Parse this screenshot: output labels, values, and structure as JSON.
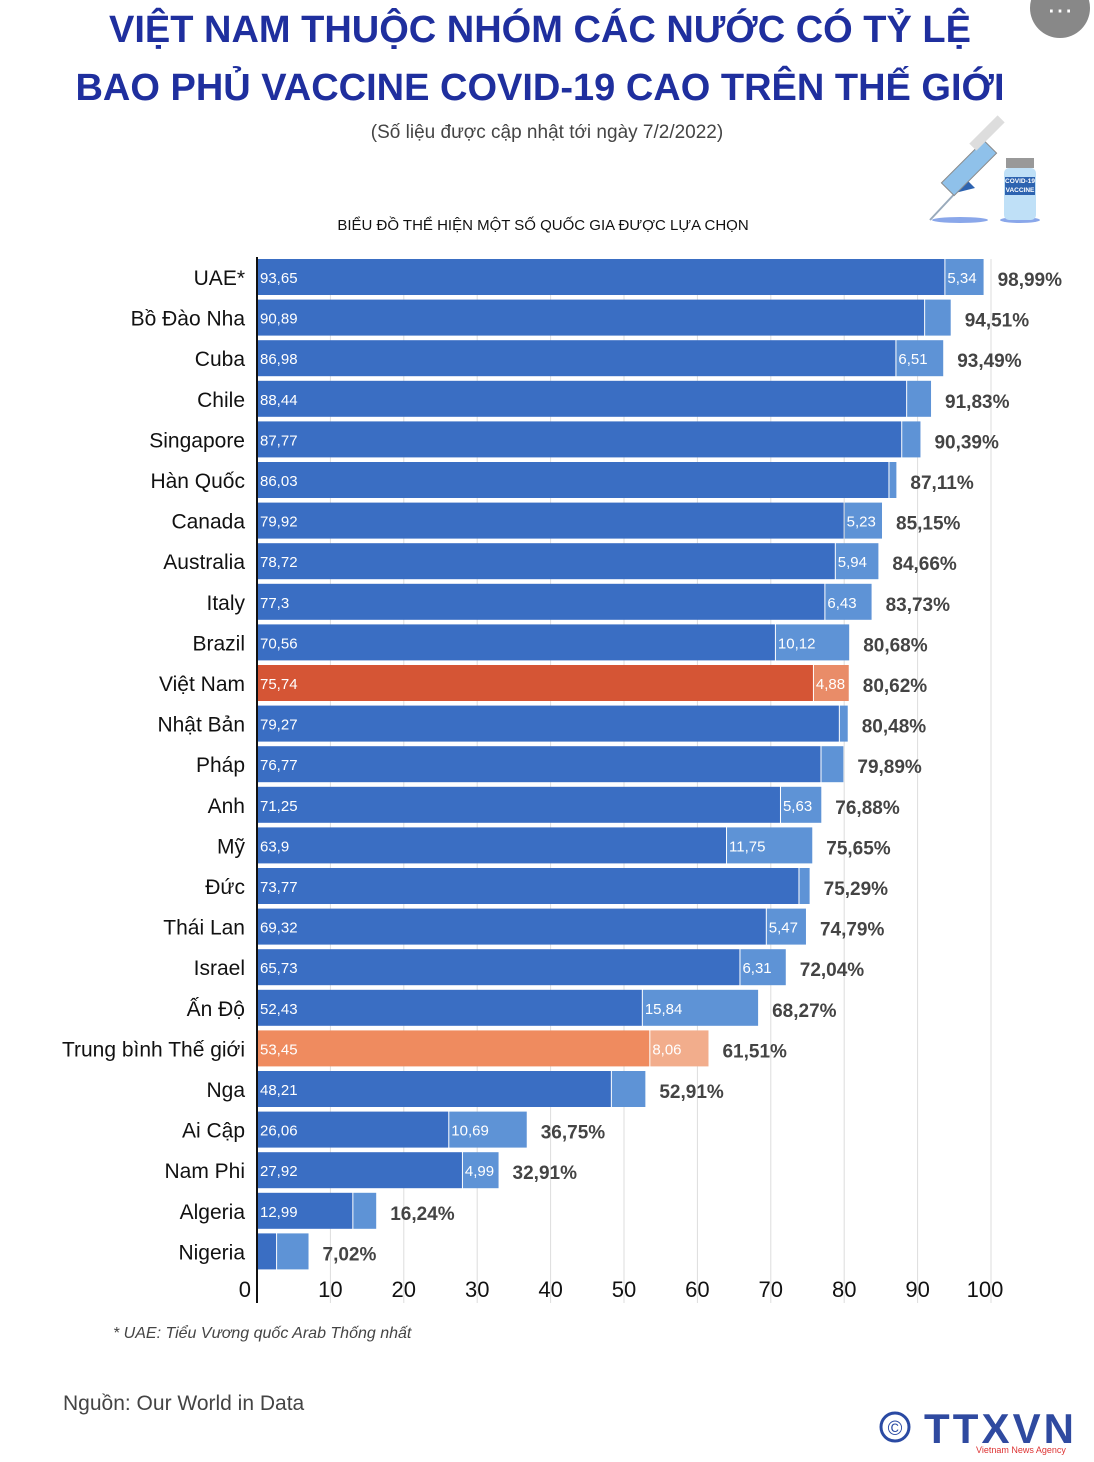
{
  "header": {
    "title_line1": "VIỆT NAM THUỘC NHÓM CÁC NƯỚC CÓ TỶ LỆ",
    "title_line2": "BAO PHỦ VACCINE COVID-19 CAO TRÊN THẾ GIỚI",
    "subtitle": "(Số liệu được cập nhật tới ngày 7/2/2022)",
    "more_icon": "⋯"
  },
  "vial_label": "COVID-19 VACCINE",
  "chart_data": {
    "type": "bar",
    "orientation": "horizontal",
    "stacked": true,
    "title": "BIỂU ĐỒ THỂ HIỆN MỘT SỐ QUỐC GIA ĐƯỢC LỰA CHỌN",
    "xlim": [
      0,
      100
    ],
    "xticks": [
      "0",
      "10",
      "20",
      "30",
      "40",
      "50",
      "60",
      "70",
      "80",
      "90",
      "100"
    ],
    "grid": true,
    "colors": {
      "primary": "#3a6ec3",
      "secondary": "#5e93d6",
      "vn_primary": "#d55535",
      "vn_secondary": "#e98c68",
      "world_primary": "#ef8b5f",
      "world_secondary": "#f2ad8c"
    },
    "categories": [
      "UAE*",
      "Bồ Đào Nha",
      "Cuba",
      "Chile",
      "Singapore",
      "Hàn Quốc",
      "Canada",
      "Australia",
      "Italy",
      "Brazil",
      "Việt Nam",
      "Nhật Bản",
      "Pháp",
      "Anh",
      "Mỹ",
      "Đức",
      "Thái Lan",
      "Israel",
      "Ấn Độ",
      "Trung bình Thế giới",
      "Nga",
      "Ai Cập",
      "Nam Phi",
      "Algeria",
      "Nigeria"
    ],
    "series": [
      {
        "values": [
          93.65,
          90.89,
          86.98,
          88.44,
          87.77,
          86.03,
          79.92,
          78.72,
          77.3,
          70.56,
          75.74,
          79.27,
          76.77,
          71.25,
          63.9,
          73.77,
          69.32,
          65.73,
          52.43,
          53.45,
          48.21,
          26.06,
          27.92,
          12.99,
          2.6
        ],
        "labels": [
          "93,65",
          "90,89",
          "86,98",
          "88,44",
          "87,77",
          "86,03",
          "79,92",
          "78,72",
          "77,3",
          "70,56",
          "75,74",
          "79,27",
          "76,77",
          "71,25",
          "63,9",
          "73,77",
          "69,32",
          "65,73",
          "52,43",
          "53,45",
          "48,21",
          "26,06",
          "27,92",
          "12,99",
          ""
        ]
      },
      {
        "values": [
          5.34,
          3.62,
          6.51,
          3.39,
          2.62,
          1.08,
          5.23,
          5.94,
          6.43,
          10.12,
          4.88,
          1.21,
          3.12,
          5.63,
          11.75,
          1.52,
          5.47,
          6.31,
          15.84,
          8.06,
          4.7,
          10.69,
          4.99,
          3.25,
          4.42
        ],
        "labels": [
          "5,34",
          "",
          "6,51",
          "",
          "",
          "",
          "5,23",
          "5,94",
          "6,43",
          "10,12",
          "4,88",
          "",
          "",
          "5,63",
          "11,75",
          "",
          "5,47",
          "6,31",
          "15,84",
          "8,06",
          "",
          "10,69",
          "4,99",
          "",
          ""
        ]
      }
    ],
    "totals": [
      "98,99%",
      "94,51%",
      "93,49%",
      "91,83%",
      "90,39%",
      "87,11%",
      "85,15%",
      "84,66%",
      "83,73%",
      "80,68%",
      "80,62%",
      "80,48%",
      "79,89%",
      "76,88%",
      "75,65%",
      "75,29%",
      "74,79%",
      "72,04%",
      "68,27%",
      "61,51%",
      "52,91%",
      "36,75%",
      "32,91%",
      "16,24%",
      "7,02%"
    ]
  },
  "footnote": "* UAE: Tiểu Vương quốc Arab Thống nhất",
  "source": "Nguồn: Our World in Data",
  "logo": {
    "text": "TTXVN",
    "tagline": "Vietnam News Agency"
  }
}
